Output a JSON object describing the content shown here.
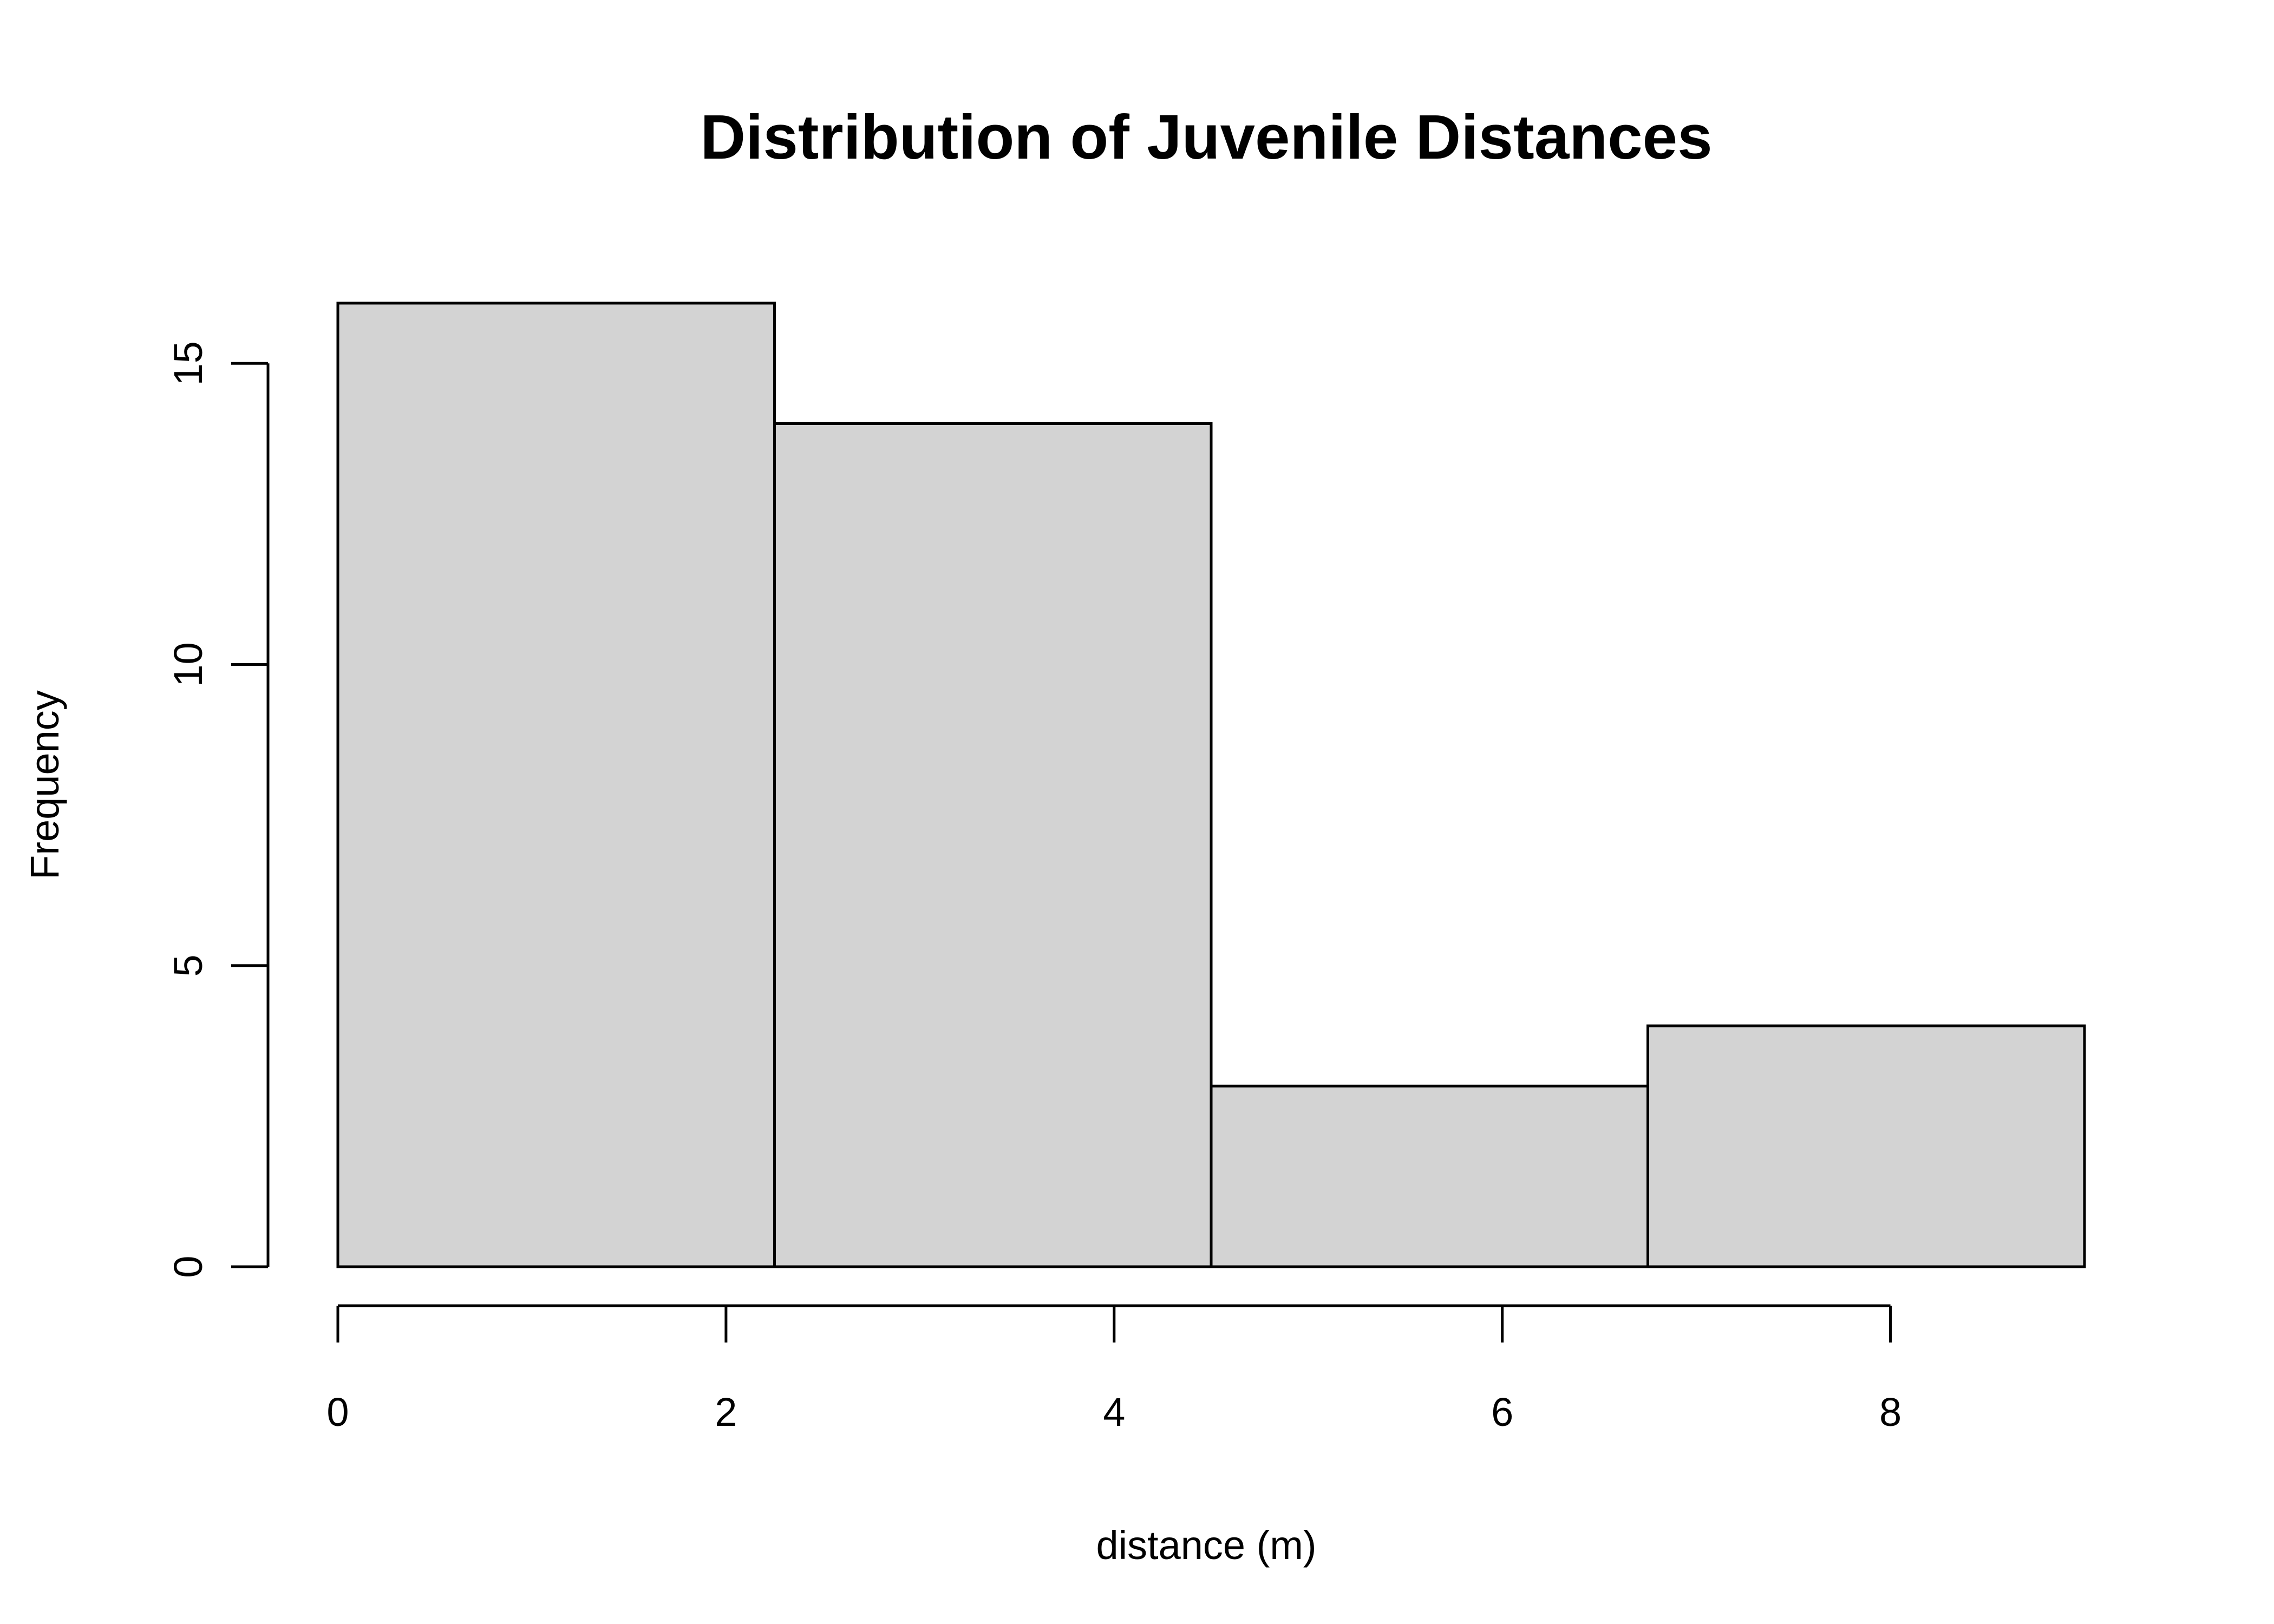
{
  "chart_data": {
    "type": "bar",
    "title": "Distribution of Juvenile Distances",
    "xlabel": "distance (m)",
    "ylabel": "Frequency",
    "bins": [
      {
        "from": 0,
        "to": 2.25,
        "count": 16
      },
      {
        "from": 2.25,
        "to": 4.5,
        "count": 14
      },
      {
        "from": 4.5,
        "to": 6.75,
        "count": 3
      },
      {
        "from": 6.75,
        "to": 9,
        "count": 4
      }
    ],
    "x_ticks": [
      "0",
      "2",
      "4",
      "6",
      "8"
    ],
    "y_ticks": [
      "0",
      "5",
      "10",
      "15"
    ],
    "xlim": [
      0,
      9
    ],
    "ylim": [
      0,
      16
    ],
    "bar_fill": "#d3d3d3",
    "grid": false,
    "legend": "none"
  }
}
